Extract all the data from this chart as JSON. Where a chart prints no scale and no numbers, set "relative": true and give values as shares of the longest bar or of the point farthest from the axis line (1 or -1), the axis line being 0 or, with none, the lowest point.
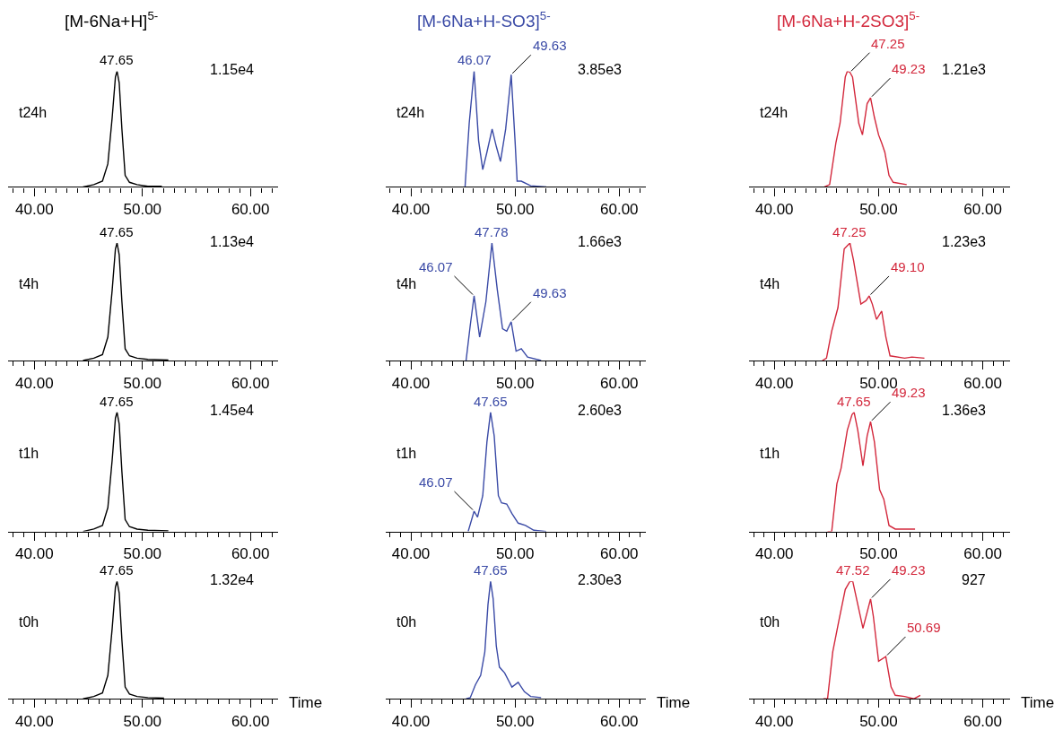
{
  "chart_data": [
    {
      "type": "line",
      "relative": true,
      "tick_labels": "x",
      "title": "[M-6Na+H]$^{5-}$",
      "ylabel": "t24h",
      "xlim": [
        37.6,
        62.6
      ],
      "xticks": [
        {
          "value": 38,
          "label": null
        },
        {
          "value": 39,
          "label": null
        },
        {
          "value": 40,
          "label": "40.00"
        },
        {
          "value": 41,
          "label": null
        },
        {
          "value": 42,
          "label": null
        },
        {
          "value": 43,
          "label": null
        },
        {
          "value": 44,
          "label": null
        },
        {
          "value": 45,
          "label": null
        },
        {
          "value": 46,
          "label": null
        },
        {
          "value": 47,
          "label": null
        },
        {
          "value": 48,
          "label": null
        },
        {
          "value": 49,
          "label": null
        },
        {
          "value": 50,
          "label": "50.00"
        },
        {
          "value": 51,
          "label": null
        },
        {
          "value": 52,
          "label": null
        },
        {
          "value": 53,
          "label": null
        },
        {
          "value": 54,
          "label": null
        },
        {
          "value": 55,
          "label": null
        },
        {
          "value": 56,
          "label": null
        },
        {
          "value": 57,
          "label": null
        },
        {
          "value": 58,
          "label": null
        },
        {
          "value": 59,
          "label": null
        },
        {
          "value": 60,
          "label": "60.00"
        },
        {
          "value": 61,
          "label": null
        },
        {
          "value": 62,
          "label": null
        }
      ],
      "x": [
        44.5,
        45.5,
        46.3,
        46.8,
        47.2,
        47.5,
        47.65,
        47.85,
        48.1,
        48.4,
        48.8,
        49.5,
        50.5,
        51.8
      ],
      "series": [
        {
          "color": "#000000",
          "values": [
            0,
            0.02,
            0.05,
            0.2,
            0.6,
            0.95,
            1,
            0.9,
            0.5,
            0.1,
            0.04,
            0.02,
            0.005,
            0.005
          ]
        }
      ],
      "annotations": [
        {
          "text": "47.65",
          "x": 47.65,
          "y": 1
        },
        "1.15e4"
      ]
    },
    {
      "type": "line",
      "relative": true,
      "tick_labels": "x",
      "title": "[M-6Na+H-SO3]$^{5-}$",
      "ylabel": "t24h",
      "xlim": [
        37.6,
        62.6
      ],
      "xticks": [
        {
          "value": 38,
          "label": null
        },
        {
          "value": 39,
          "label": null
        },
        {
          "value": 40,
          "label": "40.00"
        },
        {
          "value": 41,
          "label": null
        },
        {
          "value": 42,
          "label": null
        },
        {
          "value": 43,
          "label": null
        },
        {
          "value": 44,
          "label": null
        },
        {
          "value": 45,
          "label": null
        },
        {
          "value": 46,
          "label": null
        },
        {
          "value": 47,
          "label": null
        },
        {
          "value": 48,
          "label": null
        },
        {
          "value": 49,
          "label": null
        },
        {
          "value": 50,
          "label": "50.00"
        },
        {
          "value": 51,
          "label": null
        },
        {
          "value": 52,
          "label": null
        },
        {
          "value": 53,
          "label": null
        },
        {
          "value": 54,
          "label": null
        },
        {
          "value": 55,
          "label": null
        },
        {
          "value": 56,
          "label": null
        },
        {
          "value": 57,
          "label": null
        },
        {
          "value": 58,
          "label": null
        },
        {
          "value": 59,
          "label": null
        },
        {
          "value": 60,
          "label": "60.00"
        },
        {
          "value": 61,
          "label": null
        },
        {
          "value": 62,
          "label": null
        }
      ],
      "x": [
        45.2,
        45.6,
        46.07,
        46.5,
        46.9,
        47.3,
        47.8,
        48.2,
        48.6,
        49.1,
        49.63,
        50.0,
        50.2,
        50.6,
        51.5,
        53.0
      ],
      "series": [
        {
          "color": "#3a4aa6",
          "values": [
            0,
            0.55,
            1,
            0.4,
            0.15,
            0.3,
            0.5,
            0.35,
            0.22,
            0.5,
            0.97,
            0.4,
            0.05,
            0.05,
            0.01,
            0
          ]
        }
      ],
      "annotations": [
        {
          "text": "46.07",
          "x": 46.07,
          "y": 1
        },
        {
          "text": "49.63",
          "x": 49.63,
          "y": 0.97
        },
        "3.85e3"
      ]
    },
    {
      "type": "line",
      "relative": true,
      "tick_labels": "x",
      "title": "[M-6Na+H-2SO3]$^{5-}$",
      "ylabel": "t24h",
      "xlim": [
        37.6,
        62.6
      ],
      "xticks": [
        {
          "value": 38,
          "label": null
        },
        {
          "value": 39,
          "label": null
        },
        {
          "value": 40,
          "label": "40.00"
        },
        {
          "value": 41,
          "label": null
        },
        {
          "value": 42,
          "label": null
        },
        {
          "value": 43,
          "label": null
        },
        {
          "value": 44,
          "label": null
        },
        {
          "value": 45,
          "label": null
        },
        {
          "value": 46,
          "label": null
        },
        {
          "value": 47,
          "label": null
        },
        {
          "value": 48,
          "label": null
        },
        {
          "value": 49,
          "label": null
        },
        {
          "value": 50,
          "label": "50.00"
        },
        {
          "value": 51,
          "label": null
        },
        {
          "value": 52,
          "label": null
        },
        {
          "value": 53,
          "label": null
        },
        {
          "value": 54,
          "label": null
        },
        {
          "value": 55,
          "label": null
        },
        {
          "value": 56,
          "label": null
        },
        {
          "value": 57,
          "label": null
        },
        {
          "value": 58,
          "label": null
        },
        {
          "value": 59,
          "label": null
        },
        {
          "value": 60,
          "label": "60.00"
        },
        {
          "value": 61,
          "label": null
        },
        {
          "value": 62,
          "label": null
        }
      ],
      "x": [
        44.8,
        45.3,
        45.9,
        46.3,
        46.8,
        47.0,
        47.25,
        47.5,
        48.1,
        48.45,
        48.9,
        49.23,
        49.6,
        50.0,
        50.3,
        50.6,
        51.0,
        51.4,
        52.7
      ],
      "series": [
        {
          "color": "#d3283c",
          "values": [
            0,
            0.02,
            0.38,
            0.55,
            0.95,
            1,
            0.99,
            0.95,
            0.55,
            0.45,
            0.72,
            0.77,
            0.6,
            0.45,
            0.38,
            0.3,
            0.1,
            0.04,
            0.02
          ]
        }
      ],
      "annotations": [
        {
          "text": "47.25",
          "x": 47.25,
          "y": 0.99
        },
        {
          "text": "49.23",
          "x": 49.23,
          "y": 0.77
        },
        "1.21e3"
      ]
    },
    {
      "type": "line",
      "relative": true,
      "tick_labels": "x",
      "ylabel": "t4h",
      "xlim": [
        37.6,
        62.6
      ],
      "xticks": [
        {
          "value": 38,
          "label": null
        },
        {
          "value": 39,
          "label": null
        },
        {
          "value": 40,
          "label": "40.00"
        },
        {
          "value": 41,
          "label": null
        },
        {
          "value": 42,
          "label": null
        },
        {
          "value": 43,
          "label": null
        },
        {
          "value": 44,
          "label": null
        },
        {
          "value": 45,
          "label": null
        },
        {
          "value": 46,
          "label": null
        },
        {
          "value": 47,
          "label": null
        },
        {
          "value": 48,
          "label": null
        },
        {
          "value": 49,
          "label": null
        },
        {
          "value": 50,
          "label": "50.00"
        },
        {
          "value": 51,
          "label": null
        },
        {
          "value": 52,
          "label": null
        },
        {
          "value": 53,
          "label": null
        },
        {
          "value": 54,
          "label": null
        },
        {
          "value": 55,
          "label": null
        },
        {
          "value": 56,
          "label": null
        },
        {
          "value": 57,
          "label": null
        },
        {
          "value": 58,
          "label": null
        },
        {
          "value": 59,
          "label": null
        },
        {
          "value": 60,
          "label": "60.00"
        },
        {
          "value": 61,
          "label": null
        },
        {
          "value": 62,
          "label": null
        }
      ],
      "x": [
        44.5,
        45.5,
        46.3,
        46.8,
        47.2,
        47.5,
        47.65,
        47.85,
        48.1,
        48.4,
        48.8,
        49.5,
        50.5,
        52.4
      ],
      "series": [
        {
          "color": "#000000",
          "values": [
            0,
            0.02,
            0.05,
            0.2,
            0.6,
            0.95,
            1,
            0.9,
            0.5,
            0.1,
            0.04,
            0.02,
            0.01,
            0.005
          ]
        }
      ],
      "annotations": [
        {
          "text": "47.65",
          "x": 47.65,
          "y": 1
        },
        "1.13e4"
      ]
    },
    {
      "type": "line",
      "relative": true,
      "tick_labels": "x",
      "ylabel": "t4h",
      "xlim": [
        37.6,
        62.6
      ],
      "xticks": [
        {
          "value": 38,
          "label": null
        },
        {
          "value": 39,
          "label": null
        },
        {
          "value": 40,
          "label": "40.00"
        },
        {
          "value": 41,
          "label": null
        },
        {
          "value": 42,
          "label": null
        },
        {
          "value": 43,
          "label": null
        },
        {
          "value": 44,
          "label": null
        },
        {
          "value": 45,
          "label": null
        },
        {
          "value": 46,
          "label": null
        },
        {
          "value": 47,
          "label": null
        },
        {
          "value": 48,
          "label": null
        },
        {
          "value": 49,
          "label": null
        },
        {
          "value": 50,
          "label": "50.00"
        },
        {
          "value": 51,
          "label": null
        },
        {
          "value": 52,
          "label": null
        },
        {
          "value": 53,
          "label": null
        },
        {
          "value": 54,
          "label": null
        },
        {
          "value": 55,
          "label": null
        },
        {
          "value": 56,
          "label": null
        },
        {
          "value": 57,
          "label": null
        },
        {
          "value": 58,
          "label": null
        },
        {
          "value": 59,
          "label": null
        },
        {
          "value": 60,
          "label": "60.00"
        },
        {
          "value": 61,
          "label": null
        },
        {
          "value": 62,
          "label": null
        }
      ],
      "x": [
        45.3,
        45.7,
        46.07,
        46.6,
        47.2,
        47.78,
        48.3,
        48.8,
        49.2,
        49.63,
        50.1,
        50.6,
        51.2,
        52.5
      ],
      "series": [
        {
          "color": "#3a4aa6",
          "values": [
            0,
            0.3,
            0.55,
            0.2,
            0.5,
            1,
            0.6,
            0.27,
            0.25,
            0.33,
            0.08,
            0.1,
            0.03,
            0
          ]
        }
      ],
      "annotations": [
        {
          "text": "47.78",
          "x": 47.78,
          "y": 1
        },
        {
          "text": "46.07",
          "x": 46.07,
          "y": 0.55
        },
        {
          "text": "49.63",
          "x": 49.63,
          "y": 0.33
        },
        "1.66e3"
      ]
    },
    {
      "type": "line",
      "relative": true,
      "tick_labels": "x",
      "ylabel": "t4h",
      "xlim": [
        37.6,
        62.6
      ],
      "xticks": [
        {
          "value": 38,
          "label": null
        },
        {
          "value": 39,
          "label": null
        },
        {
          "value": 40,
          "label": "40.00"
        },
        {
          "value": 41,
          "label": null
        },
        {
          "value": 42,
          "label": null
        },
        {
          "value": 43,
          "label": null
        },
        {
          "value": 44,
          "label": null
        },
        {
          "value": 45,
          "label": null
        },
        {
          "value": 46,
          "label": null
        },
        {
          "value": 47,
          "label": null
        },
        {
          "value": 48,
          "label": null
        },
        {
          "value": 49,
          "label": null
        },
        {
          "value": 50,
          "label": "50.00"
        },
        {
          "value": 51,
          "label": null
        },
        {
          "value": 52,
          "label": null
        },
        {
          "value": 53,
          "label": null
        },
        {
          "value": 54,
          "label": null
        },
        {
          "value": 55,
          "label": null
        },
        {
          "value": 56,
          "label": null
        },
        {
          "value": 57,
          "label": null
        },
        {
          "value": 58,
          "label": null
        },
        {
          "value": 59,
          "label": null
        },
        {
          "value": 60,
          "label": "60.00"
        },
        {
          "value": 61,
          "label": null
        },
        {
          "value": 62,
          "label": null
        }
      ],
      "x": [
        44.6,
        45.0,
        45.5,
        46.1,
        46.7,
        47.25,
        47.6,
        48.3,
        48.8,
        49.1,
        49.4,
        49.8,
        50.3,
        50.7,
        51.1,
        52.5,
        53.2,
        54.4
      ],
      "series": [
        {
          "color": "#d3283c",
          "values": [
            0,
            0.02,
            0.25,
            0.45,
            0.95,
            1,
            0.85,
            0.48,
            0.51,
            0.55,
            0.48,
            0.35,
            0.42,
            0.2,
            0.04,
            0.02,
            0.03,
            0.02
          ]
        }
      ],
      "annotations": [
        {
          "text": "47.25",
          "x": 47.25,
          "y": 1
        },
        {
          "text": "49.10",
          "x": 49.1,
          "y": 0.55
        },
        "1.23e3"
      ]
    },
    {
      "type": "line",
      "relative": true,
      "tick_labels": "x",
      "ylabel": "t1h",
      "xlim": [
        37.6,
        62.6
      ],
      "xticks": [
        {
          "value": 38,
          "label": null
        },
        {
          "value": 39,
          "label": null
        },
        {
          "value": 40,
          "label": "40.00"
        },
        {
          "value": 41,
          "label": null
        },
        {
          "value": 42,
          "label": null
        },
        {
          "value": 43,
          "label": null
        },
        {
          "value": 44,
          "label": null
        },
        {
          "value": 45,
          "label": null
        },
        {
          "value": 46,
          "label": null
        },
        {
          "value": 47,
          "label": null
        },
        {
          "value": 48,
          "label": null
        },
        {
          "value": 49,
          "label": null
        },
        {
          "value": 50,
          "label": "50.00"
        },
        {
          "value": 51,
          "label": null
        },
        {
          "value": 52,
          "label": null
        },
        {
          "value": 53,
          "label": null
        },
        {
          "value": 54,
          "label": null
        },
        {
          "value": 55,
          "label": null
        },
        {
          "value": 56,
          "label": null
        },
        {
          "value": 57,
          "label": null
        },
        {
          "value": 58,
          "label": null
        },
        {
          "value": 59,
          "label": null
        },
        {
          "value": 60,
          "label": "60.00"
        },
        {
          "value": 61,
          "label": null
        },
        {
          "value": 62,
          "label": null
        }
      ],
      "x": [
        44.5,
        45.5,
        46.3,
        46.8,
        47.2,
        47.5,
        47.65,
        47.85,
        48.1,
        48.4,
        48.8,
        49.5,
        50.5,
        52.4
      ],
      "series": [
        {
          "color": "#000000",
          "values": [
            0,
            0.02,
            0.05,
            0.2,
            0.6,
            0.95,
            1,
            0.9,
            0.5,
            0.1,
            0.04,
            0.02,
            0.01,
            0.005
          ]
        }
      ],
      "annotations": [
        {
          "text": "47.65",
          "x": 47.65,
          "y": 1
        },
        "1.45e4"
      ]
    },
    {
      "type": "line",
      "relative": true,
      "tick_labels": "x",
      "ylabel": "t1h",
      "xlim": [
        37.6,
        62.6
      ],
      "xticks": [
        {
          "value": 38,
          "label": null
        },
        {
          "value": 39,
          "label": null
        },
        {
          "value": 40,
          "label": "40.00"
        },
        {
          "value": 41,
          "label": null
        },
        {
          "value": 42,
          "label": null
        },
        {
          "value": 43,
          "label": null
        },
        {
          "value": 44,
          "label": null
        },
        {
          "value": 45,
          "label": null
        },
        {
          "value": 46,
          "label": null
        },
        {
          "value": 47,
          "label": null
        },
        {
          "value": 48,
          "label": null
        },
        {
          "value": 49,
          "label": null
        },
        {
          "value": 50,
          "label": "50.00"
        },
        {
          "value": 51,
          "label": null
        },
        {
          "value": 52,
          "label": null
        },
        {
          "value": 53,
          "label": null
        },
        {
          "value": 54,
          "label": null
        },
        {
          "value": 55,
          "label": null
        },
        {
          "value": 56,
          "label": null
        },
        {
          "value": 57,
          "label": null
        },
        {
          "value": 58,
          "label": null
        },
        {
          "value": 59,
          "label": null
        },
        {
          "value": 60,
          "label": "60.00"
        },
        {
          "value": 61,
          "label": null
        },
        {
          "value": 62,
          "label": null
        }
      ],
      "x": [
        45.5,
        46.07,
        46.4,
        46.9,
        47.3,
        47.65,
        48.0,
        48.4,
        48.7,
        49.2,
        49.7,
        50.3,
        51.0,
        51.8,
        53.0
      ],
      "series": [
        {
          "color": "#3a4aa6",
          "values": [
            0,
            0.17,
            0.12,
            0.3,
            0.75,
            1,
            0.8,
            0.3,
            0.24,
            0.23,
            0.15,
            0.07,
            0.05,
            0.01,
            0
          ]
        }
      ],
      "annotations": [
        {
          "text": "47.65",
          "x": 47.65,
          "y": 1
        },
        {
          "text": "46.07",
          "x": 46.07,
          "y": 0.17
        },
        "2.60e3"
      ]
    },
    {
      "type": "line",
      "relative": true,
      "tick_labels": "x",
      "ylabel": "t1h",
      "xlim": [
        37.6,
        62.6
      ],
      "xticks": [
        {
          "value": 38,
          "label": null
        },
        {
          "value": 39,
          "label": null
        },
        {
          "value": 40,
          "label": "40.00"
        },
        {
          "value": 41,
          "label": null
        },
        {
          "value": 42,
          "label": null
        },
        {
          "value": 43,
          "label": null
        },
        {
          "value": 44,
          "label": null
        },
        {
          "value": 45,
          "label": null
        },
        {
          "value": 46,
          "label": null
        },
        {
          "value": 47,
          "label": null
        },
        {
          "value": 48,
          "label": null
        },
        {
          "value": 49,
          "label": null
        },
        {
          "value": 50,
          "label": "50.00"
        },
        {
          "value": 51,
          "label": null
        },
        {
          "value": 52,
          "label": null
        },
        {
          "value": 53,
          "label": null
        },
        {
          "value": 54,
          "label": null
        },
        {
          "value": 55,
          "label": null
        },
        {
          "value": 56,
          "label": null
        },
        {
          "value": 57,
          "label": null
        },
        {
          "value": 58,
          "label": null
        },
        {
          "value": 59,
          "label": null
        },
        {
          "value": 60,
          "label": "60.00"
        },
        {
          "value": 61,
          "label": null
        },
        {
          "value": 62,
          "label": null
        }
      ],
      "x": [
        45.1,
        45.5,
        46.0,
        46.4,
        47.0,
        47.45,
        47.65,
        48.0,
        48.5,
        48.9,
        49.23,
        49.6,
        50.1,
        50.5,
        51.0,
        51.6,
        53.5
      ],
      "series": [
        {
          "color": "#d3283c",
          "values": [
            0,
            0,
            0.4,
            0.53,
            0.85,
            0.98,
            1,
            0.85,
            0.55,
            0.8,
            0.92,
            0.75,
            0.35,
            0.27,
            0.05,
            0.02,
            0.02
          ]
        }
      ],
      "annotations": [
        {
          "text": "47.65",
          "x": 47.65,
          "y": 1
        },
        {
          "text": "49.23",
          "x": 49.23,
          "y": 0.92
        },
        "1.36e3"
      ]
    },
    {
      "type": "line",
      "relative": true,
      "tick_labels": "x",
      "ylabel": "t0h",
      "xlabel": "Time",
      "xlim": [
        37.6,
        62.6
      ],
      "xticks": [
        {
          "value": 38,
          "label": null
        },
        {
          "value": 39,
          "label": null
        },
        {
          "value": 40,
          "label": "40.00"
        },
        {
          "value": 41,
          "label": null
        },
        {
          "value": 42,
          "label": null
        },
        {
          "value": 43,
          "label": null
        },
        {
          "value": 44,
          "label": null
        },
        {
          "value": 45,
          "label": null
        },
        {
          "value": 46,
          "label": null
        },
        {
          "value": 47,
          "label": null
        },
        {
          "value": 48,
          "label": null
        },
        {
          "value": 49,
          "label": null
        },
        {
          "value": 50,
          "label": "50.00"
        },
        {
          "value": 51,
          "label": null
        },
        {
          "value": 52,
          "label": null
        },
        {
          "value": 53,
          "label": null
        },
        {
          "value": 54,
          "label": null
        },
        {
          "value": 55,
          "label": null
        },
        {
          "value": 56,
          "label": null
        },
        {
          "value": 57,
          "label": null
        },
        {
          "value": 58,
          "label": null
        },
        {
          "value": 59,
          "label": null
        },
        {
          "value": 60,
          "label": "60.00"
        },
        {
          "value": 61,
          "label": null
        },
        {
          "value": 62,
          "label": null
        }
      ],
      "x": [
        44.5,
        45.5,
        46.3,
        46.8,
        47.2,
        47.5,
        47.65,
        47.85,
        48.1,
        48.4,
        48.8,
        49.5,
        50.5,
        52.0
      ],
      "series": [
        {
          "color": "#000000",
          "values": [
            0,
            0.02,
            0.05,
            0.2,
            0.6,
            0.95,
            1,
            0.9,
            0.5,
            0.1,
            0.04,
            0.02,
            0.01,
            0.005
          ]
        }
      ],
      "annotations": [
        {
          "text": "47.65",
          "x": 47.65,
          "y": 1
        },
        "1.32e4"
      ]
    },
    {
      "type": "line",
      "relative": true,
      "tick_labels": "x",
      "ylabel": "t0h",
      "xlabel": "Time",
      "xlim": [
        37.6,
        62.6
      ],
      "xticks": [
        {
          "value": 38,
          "label": null
        },
        {
          "value": 39,
          "label": null
        },
        {
          "value": 40,
          "label": "40.00"
        },
        {
          "value": 41,
          "label": null
        },
        {
          "value": 42,
          "label": null
        },
        {
          "value": 43,
          "label": null
        },
        {
          "value": 44,
          "label": null
        },
        {
          "value": 45,
          "label": null
        },
        {
          "value": 46,
          "label": null
        },
        {
          "value": 47,
          "label": null
        },
        {
          "value": 48,
          "label": null
        },
        {
          "value": 49,
          "label": null
        },
        {
          "value": 50,
          "label": "50.00"
        },
        {
          "value": 51,
          "label": null
        },
        {
          "value": 52,
          "label": null
        },
        {
          "value": 53,
          "label": null
        },
        {
          "value": 54,
          "label": null
        },
        {
          "value": 55,
          "label": null
        },
        {
          "value": 56,
          "label": null
        },
        {
          "value": 57,
          "label": null
        },
        {
          "value": 58,
          "label": null
        },
        {
          "value": 59,
          "label": null
        },
        {
          "value": 60,
          "label": "60.00"
        },
        {
          "value": 61,
          "label": null
        },
        {
          "value": 62,
          "label": null
        }
      ],
      "x": [
        45.3,
        45.7,
        46.2,
        46.7,
        47.1,
        47.4,
        47.65,
        47.9,
        48.2,
        48.5,
        49.0,
        49.7,
        50.3,
        50.9,
        51.5,
        52.5
      ],
      "series": [
        {
          "color": "#3a4aa6",
          "values": [
            0,
            0.01,
            0.12,
            0.2,
            0.4,
            0.8,
            1,
            0.85,
            0.45,
            0.27,
            0.22,
            0.1,
            0.14,
            0.06,
            0.02,
            0.01
          ]
        }
      ],
      "annotations": [
        {
          "text": "47.65",
          "x": 47.65,
          "y": 1
        },
        "2.30e3"
      ]
    },
    {
      "type": "line",
      "relative": true,
      "tick_labels": "x",
      "ylabel": "t0h",
      "xlabel": "Time",
      "xlim": [
        37.6,
        62.6
      ],
      "xticks": [
        {
          "value": 38,
          "label": null
        },
        {
          "value": 39,
          "label": null
        },
        {
          "value": 40,
          "label": "40.00"
        },
        {
          "value": 41,
          "label": null
        },
        {
          "value": 42,
          "label": null
        },
        {
          "value": 43,
          "label": null
        },
        {
          "value": 44,
          "label": null
        },
        {
          "value": 45,
          "label": null
        },
        {
          "value": 46,
          "label": null
        },
        {
          "value": 47,
          "label": null
        },
        {
          "value": 48,
          "label": null
        },
        {
          "value": 49,
          "label": null
        },
        {
          "value": 50,
          "label": "50.00"
        },
        {
          "value": 51,
          "label": null
        },
        {
          "value": 52,
          "label": null
        },
        {
          "value": 53,
          "label": null
        },
        {
          "value": 54,
          "label": null
        },
        {
          "value": 55,
          "label": null
        },
        {
          "value": 56,
          "label": null
        },
        {
          "value": 57,
          "label": null
        },
        {
          "value": 58,
          "label": null
        },
        {
          "value": 59,
          "label": null
        },
        {
          "value": 60,
          "label": "60.00"
        },
        {
          "value": 61,
          "label": null
        },
        {
          "value": 62,
          "label": null
        }
      ],
      "x": [
        44.7,
        45.1,
        45.6,
        46.2,
        46.8,
        47.25,
        47.52,
        48.5,
        49.23,
        49.5,
        50.0,
        50.69,
        51.2,
        51.6,
        52.5,
        53.4,
        54.0
      ],
      "series": [
        {
          "color": "#d3283c",
          "values": [
            0,
            0,
            0.4,
            0.67,
            0.93,
            1,
            1,
            0.6,
            0.85,
            0.7,
            0.32,
            0.36,
            0.1,
            0.03,
            0.02,
            0,
            0.03
          ]
        }
      ],
      "annotations": [
        {
          "text": "47.52",
          "x": 47.52,
          "y": 1
        },
        {
          "text": "49.23",
          "x": 49.23,
          "y": 0.85
        },
        {
          "text": "50.69",
          "x": 50.69,
          "y": 0.36
        },
        "927"
      ]
    }
  ]
}
